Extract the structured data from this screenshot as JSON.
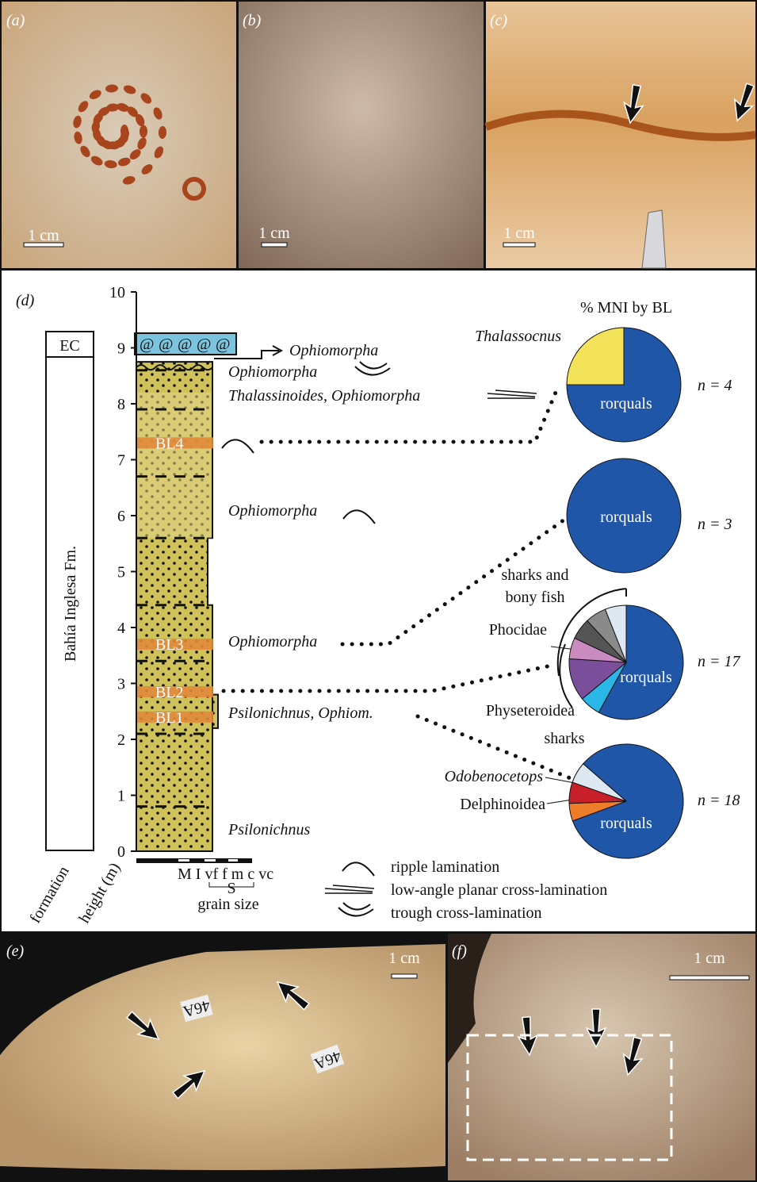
{
  "panels": {
    "a": {
      "label": "(a)",
      "scale": "1 cm"
    },
    "b": {
      "label": "(b)",
      "scale": "1 cm"
    },
    "c": {
      "label": "(c)",
      "scale": "1 cm"
    },
    "d": {
      "label": "(d)"
    },
    "e": {
      "label": "(e)",
      "scale": "1 cm",
      "tags": [
        "46A",
        "46A"
      ]
    },
    "f": {
      "label": "(f)",
      "scale": "1 cm"
    }
  },
  "column": {
    "height_label": "height (m)",
    "formation_label": "formation",
    "height_ticks": [
      0,
      1,
      2,
      3,
      4,
      5,
      6,
      7,
      8,
      9,
      10
    ],
    "units": [
      "EC",
      "Bahía Inglesa Fm."
    ],
    "beds": [
      "BL4",
      "BL3",
      "BL2",
      "BL1"
    ],
    "grain_classes": "M I vf f m c vc",
    "grain_s": "S",
    "grain_title": "grain size"
  },
  "traces": [
    "Ophiomorpha",
    "Ophiomorpha",
    "Thalassinoides, Ophiomorpha",
    "Ophiomorpha",
    "Ophiomorpha",
    "Psilonichnus, Ophiom.",
    "Psilonichnus"
  ],
  "pie_title": "% MNI by BL",
  "pies": [
    {
      "n": "n = 4",
      "labels": [
        "Thalassocnus",
        "rorquals"
      ],
      "slices": [
        {
          "value": 75,
          "color": "#1f56a8"
        },
        {
          "value": 25,
          "color": "#f2e35a"
        }
      ]
    },
    {
      "n": "n = 3",
      "labels": [
        "rorquals"
      ],
      "slices": [
        {
          "value": 100,
          "color": "#1f56a8"
        }
      ]
    },
    {
      "n": "n = 17",
      "labels": [
        "rorquals",
        "sharks and",
        "bony fish",
        "Phocidae",
        "Physeteroidea"
      ],
      "slices": [
        {
          "value": 58,
          "color": "#1f56a8"
        },
        {
          "value": 6,
          "color": "#2ab6e6"
        },
        {
          "value": 12,
          "color": "#7b4e9b"
        },
        {
          "value": 6,
          "color": "#c98bc0"
        },
        {
          "value": 6,
          "color": "#555555"
        },
        {
          "value": 6,
          "color": "#8a8a8a"
        },
        {
          "value": 6,
          "color": "#dde8f2"
        }
      ]
    },
    {
      "n": "n = 18",
      "labels": [
        "rorquals",
        "sharks",
        "Odobenocetops",
        "Delphinoidea"
      ],
      "slices": [
        {
          "value": 83,
          "color": "#1f56a8"
        },
        {
          "value": 5,
          "color": "#ee7d2a"
        },
        {
          "value": 6,
          "color": "#c8202a"
        },
        {
          "value": 6,
          "color": "#dde8f2"
        }
      ]
    }
  ],
  "legend": [
    "ripple lamination",
    "low-angle planar cross-lamination",
    "trough cross-lamination"
  ]
}
